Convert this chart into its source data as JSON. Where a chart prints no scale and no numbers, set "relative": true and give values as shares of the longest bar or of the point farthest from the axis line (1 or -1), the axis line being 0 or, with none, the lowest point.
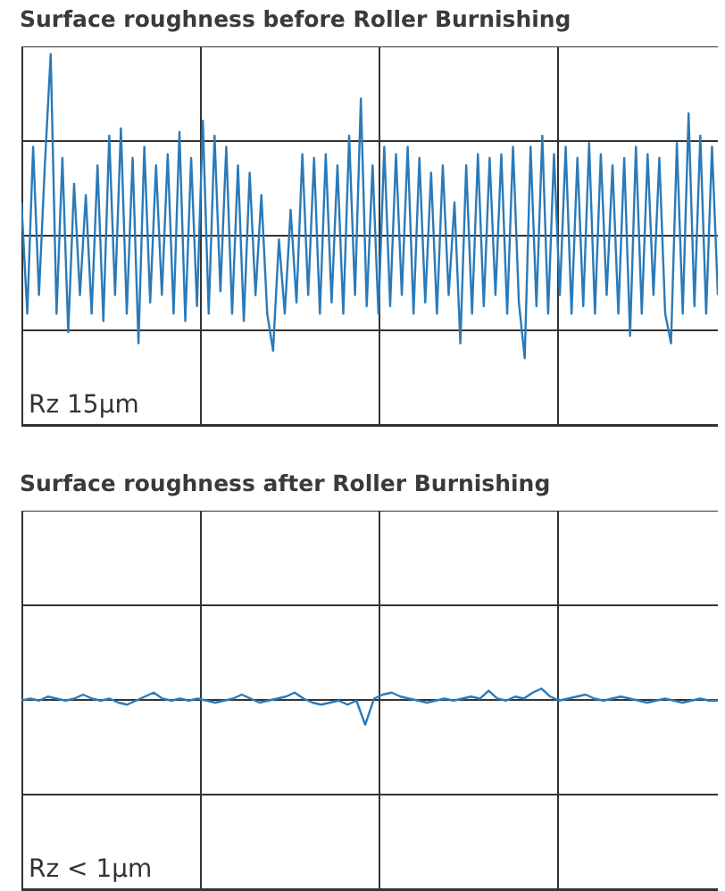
{
  "chart_data": [
    {
      "type": "line",
      "title": "Surface roughness before Roller Burnishing",
      "relative": true,
      "grid": true,
      "color": "#2a7ab9",
      "annotations": [
        "Rz 15µm"
      ],
      "categories": [
        null,
        null,
        null,
        null,
        null,
        null,
        null,
        null,
        null,
        null,
        null,
        null,
        null,
        null,
        null,
        null,
        null,
        null,
        null,
        null,
        null,
        null,
        null,
        null,
        null,
        null,
        null,
        null,
        null,
        null,
        null,
        null,
        null,
        null,
        null,
        null,
        null,
        null,
        null,
        null,
        null,
        null,
        null,
        null,
        null,
        null,
        null,
        null,
        null,
        null,
        null,
        null,
        null,
        null,
        null,
        null,
        null,
        null,
        null,
        null,
        null,
        null,
        null,
        null,
        null,
        null,
        null,
        null,
        null,
        null,
        null,
        null,
        null,
        null,
        null,
        null,
        null,
        null,
        null,
        null,
        null,
        null,
        null,
        null,
        null,
        null,
        null,
        null,
        null,
        null,
        null,
        null,
        null,
        null,
        null,
        null,
        null,
        null,
        null,
        null,
        null,
        null,
        null,
        null,
        null,
        null,
        null,
        null,
        null,
        null,
        null,
        null,
        null,
        null,
        null,
        null,
        null,
        null,
        null,
        null
      ],
      "values": [
        0.6,
        0.3,
        0.75,
        0.35,
        0.7,
        1.0,
        0.3,
        0.72,
        0.25,
        0.65,
        0.35,
        0.62,
        0.3,
        0.7,
        0.28,
        0.78,
        0.35,
        0.8,
        0.3,
        0.72,
        0.22,
        0.75,
        0.33,
        0.7,
        0.35,
        0.73,
        0.3,
        0.79,
        0.28,
        0.72,
        0.32,
        0.82,
        0.3,
        0.78,
        0.36,
        0.75,
        0.3,
        0.7,
        0.28,
        0.68,
        0.35,
        0.62,
        0.3,
        0.2,
        0.5,
        0.3,
        0.58,
        0.33,
        0.73,
        0.35,
        0.72,
        0.3,
        0.73,
        0.33,
        0.7,
        0.3,
        0.78,
        0.35,
        0.88,
        0.32,
        0.7,
        0.3,
        0.75,
        0.32,
        0.73,
        0.35,
        0.75,
        0.3,
        0.72,
        0.33,
        0.68,
        0.3,
        0.7,
        0.35,
        0.6,
        0.22,
        0.7,
        0.3,
        0.73,
        0.32,
        0.72,
        0.35,
        0.73,
        0.3,
        0.75,
        0.33,
        0.18,
        0.75,
        0.32,
        0.78,
        0.3,
        0.73,
        0.35,
        0.75,
        0.3,
        0.72,
        0.32,
        0.76,
        0.3,
        0.73,
        0.35,
        0.7,
        0.3,
        0.72,
        0.24,
        0.75,
        0.3,
        0.73,
        0.35,
        0.72,
        0.3,
        0.22,
        0.76,
        0.3,
        0.84,
        0.32,
        0.78,
        0.3,
        0.75,
        0.35
      ]
    },
    {
      "type": "line",
      "title": "Surface roughness after Roller Burnishing",
      "relative": true,
      "grid": true,
      "color": "#2a7ab9",
      "annotations": [
        "Rz < 1µm"
      ],
      "categories": [
        null,
        null,
        null,
        null,
        null,
        null,
        null,
        null,
        null,
        null,
        null,
        null,
        null,
        null,
        null,
        null,
        null,
        null,
        null,
        null,
        null,
        null,
        null,
        null,
        null,
        null,
        null,
        null,
        null,
        null,
        null,
        null,
        null,
        null,
        null,
        null,
        null,
        null,
        null,
        null,
        null,
        null,
        null,
        null,
        null,
        null,
        null,
        null,
        null,
        null,
        null,
        null,
        null,
        null,
        null,
        null,
        null,
        null,
        null,
        null,
        null,
        null,
        null,
        null,
        null,
        null,
        null,
        null,
        null,
        null,
        null,
        null,
        null,
        null,
        null,
        null,
        null,
        null,
        null,
        null
      ],
      "values": [
        0.94,
        0.95,
        0.94,
        0.96,
        0.95,
        0.94,
        0.95,
        0.97,
        0.95,
        0.94,
        0.95,
        0.93,
        0.92,
        0.94,
        0.96,
        0.98,
        0.95,
        0.94,
        0.95,
        0.94,
        0.95,
        0.94,
        0.93,
        0.94,
        0.95,
        0.97,
        0.95,
        0.93,
        0.94,
        0.95,
        0.96,
        0.98,
        0.95,
        0.93,
        0.92,
        0.93,
        0.94,
        0.92,
        0.94,
        0.82,
        0.95,
        0.97,
        0.98,
        0.96,
        0.95,
        0.94,
        0.93,
        0.94,
        0.95,
        0.94,
        0.95,
        0.96,
        0.95,
        0.99,
        0.95,
        0.94,
        0.96,
        0.95,
        0.98,
        1.0,
        0.96,
        0.94,
        0.95,
        0.96,
        0.97,
        0.95,
        0.94,
        0.95,
        0.96,
        0.95,
        0.94,
        0.93,
        0.94,
        0.95,
        0.94,
        0.93,
        0.94,
        0.95,
        0.94,
        0.94
      ]
    }
  ]
}
